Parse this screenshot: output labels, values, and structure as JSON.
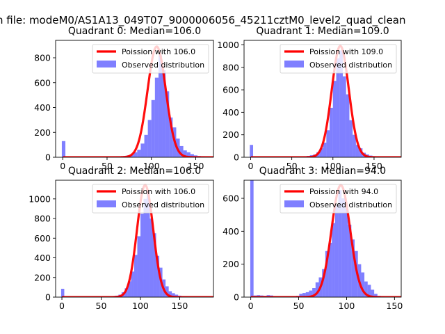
{
  "figure": {
    "suptitle": "n file: modeM0/AS1A13_049T07_9000006056_45211cztM0_level2_quad_clean"
  },
  "chart_data": [
    {
      "type": "bar",
      "title": "Quadrant 0: Median=106.0",
      "xlim": [
        -8,
        170
      ],
      "ylim": [
        0,
        940
      ],
      "xticks": [
        0,
        50,
        100,
        150
      ],
      "yticks": [
        0,
        200,
        400,
        600,
        800
      ],
      "mean": 106.0,
      "fit_peak": 890,
      "fit_sigma": 10.3,
      "bin_width": 4,
      "legend": [
        "Poission with 106.0",
        "Observed distribution"
      ],
      "legend_loc": "upper right",
      "bars": [
        [
          -1,
          130
        ],
        [
          0,
          5
        ],
        [
          4,
          5
        ],
        [
          8,
          5
        ],
        [
          12,
          5
        ],
        [
          16,
          5
        ],
        [
          20,
          5
        ],
        [
          24,
          5
        ],
        [
          28,
          5
        ],
        [
          32,
          5
        ],
        [
          36,
          5
        ],
        [
          40,
          5
        ],
        [
          44,
          5
        ],
        [
          48,
          5
        ],
        [
          52,
          5
        ],
        [
          56,
          5
        ],
        [
          60,
          6
        ],
        [
          64,
          8
        ],
        [
          68,
          10
        ],
        [
          72,
          15
        ],
        [
          76,
          20
        ],
        [
          80,
          40
        ],
        [
          84,
          60
        ],
        [
          88,
          110
        ],
        [
          92,
          180
        ],
        [
          96,
          300
        ],
        [
          100,
          460
        ],
        [
          104,
          640
        ],
        [
          108,
          820
        ],
        [
          112,
          700
        ],
        [
          116,
          530
        ],
        [
          120,
          320
        ],
        [
          124,
          240
        ],
        [
          128,
          150
        ],
        [
          132,
          90
        ],
        [
          136,
          55
        ],
        [
          140,
          40
        ],
        [
          144,
          25
        ],
        [
          148,
          15
        ],
        [
          152,
          10
        ],
        [
          156,
          8
        ],
        [
          160,
          5
        ]
      ]
    },
    {
      "type": "bar",
      "title": "Quadrant 1: Median=109.0",
      "xlim": [
        -8,
        183
      ],
      "ylim": [
        0,
        1040
      ],
      "xticks": [
        0,
        50,
        100,
        150
      ],
      "yticks": [
        0,
        200,
        400,
        600,
        800,
        1000
      ],
      "mean": 109.0,
      "fit_peak": 990,
      "fit_sigma": 10.4,
      "bin_width": 4,
      "legend": [
        "Poission with 109.0",
        "Observed distribution"
      ],
      "legend_loc": "upper right",
      "bars": [
        [
          -1,
          110
        ],
        [
          4,
          5
        ],
        [
          8,
          5
        ],
        [
          12,
          5
        ],
        [
          16,
          5
        ],
        [
          20,
          5
        ],
        [
          24,
          5
        ],
        [
          28,
          5
        ],
        [
          32,
          5
        ],
        [
          36,
          5
        ],
        [
          40,
          5
        ],
        [
          44,
          5
        ],
        [
          48,
          5
        ],
        [
          52,
          5
        ],
        [
          56,
          5
        ],
        [
          60,
          5
        ],
        [
          64,
          8
        ],
        [
          68,
          12
        ],
        [
          72,
          18
        ],
        [
          76,
          25
        ],
        [
          80,
          45
        ],
        [
          84,
          80
        ],
        [
          88,
          130
        ],
        [
          92,
          240
        ],
        [
          96,
          440
        ],
        [
          100,
          680
        ],
        [
          104,
          880
        ],
        [
          108,
          950
        ],
        [
          112,
          720
        ],
        [
          116,
          560
        ],
        [
          120,
          330
        ],
        [
          124,
          200
        ],
        [
          128,
          110
        ],
        [
          132,
          80
        ],
        [
          136,
          40
        ],
        [
          140,
          25
        ],
        [
          144,
          15
        ],
        [
          148,
          10
        ],
        [
          152,
          8
        ],
        [
          156,
          6
        ],
        [
          160,
          5
        ],
        [
          164,
          5
        ],
        [
          168,
          5
        ],
        [
          172,
          5
        ]
      ]
    },
    {
      "type": "bar",
      "title": "Quadrant 2: Median=106.0",
      "xlim": [
        -8,
        193
      ],
      "ylim": [
        0,
        1190
      ],
      "xticks": [
        0,
        50,
        100,
        150
      ],
      "yticks": [
        0,
        200,
        400,
        600,
        800,
        1000
      ],
      "mean": 106.0,
      "fit_peak": 1140,
      "fit_sigma": 10.3,
      "bin_width": 4,
      "legend": [
        "Poission with 106.0",
        "Observed distribution"
      ],
      "legend_loc": "upper right",
      "bars": [
        [
          -1,
          85
        ],
        [
          4,
          5
        ],
        [
          8,
          5
        ],
        [
          12,
          5
        ],
        [
          16,
          5
        ],
        [
          20,
          5
        ],
        [
          24,
          5
        ],
        [
          28,
          5
        ],
        [
          32,
          5
        ],
        [
          36,
          5
        ],
        [
          40,
          5
        ],
        [
          44,
          5
        ],
        [
          48,
          5
        ],
        [
          52,
          5
        ],
        [
          56,
          5
        ],
        [
          60,
          6
        ],
        [
          64,
          10
        ],
        [
          68,
          15
        ],
        [
          72,
          25
        ],
        [
          76,
          50
        ],
        [
          80,
          90
        ],
        [
          84,
          160
        ],
        [
          88,
          260
        ],
        [
          92,
          430
        ],
        [
          96,
          620
        ],
        [
          100,
          850
        ],
        [
          104,
          1000
        ],
        [
          108,
          1080
        ],
        [
          112,
          800
        ],
        [
          116,
          650
        ],
        [
          120,
          420
        ],
        [
          124,
          300
        ],
        [
          128,
          180
        ],
        [
          132,
          110
        ],
        [
          136,
          60
        ],
        [
          140,
          40
        ],
        [
          144,
          25
        ],
        [
          148,
          15
        ],
        [
          152,
          10
        ],
        [
          156,
          8
        ],
        [
          160,
          5
        ],
        [
          164,
          5
        ],
        [
          168,
          5
        ],
        [
          172,
          5
        ],
        [
          176,
          5
        ],
        [
          180,
          5
        ]
      ]
    },
    {
      "type": "bar",
      "title": "Quadrant 3: Median=94.0",
      "xlim": [
        -7,
        157
      ],
      "ylim": [
        0,
        710
      ],
      "xticks": [
        0,
        50,
        100,
        150
      ],
      "yticks": [
        0,
        200,
        400,
        600
      ],
      "mean": 94.0,
      "fit_peak": 680,
      "fit_sigma": 9.7,
      "bin_width": 3.4,
      "legend": [
        "Poission with 94.0",
        "Observed distribution"
      ],
      "legend_loc": "upper right",
      "bars": [
        [
          -0.5,
          710
        ],
        [
          3,
          10
        ],
        [
          6.4,
          12
        ],
        [
          9.8,
          10
        ],
        [
          13.2,
          8
        ],
        [
          16.6,
          12
        ],
        [
          20,
          10
        ],
        [
          23.4,
          6
        ],
        [
          26.8,
          5
        ],
        [
          30.2,
          5
        ],
        [
          33.6,
          5
        ],
        [
          37,
          5
        ],
        [
          40.4,
          5
        ],
        [
          43.8,
          6
        ],
        [
          47.2,
          8
        ],
        [
          50.6,
          20
        ],
        [
          54,
          25
        ],
        [
          57.4,
          30
        ],
        [
          60.8,
          40
        ],
        [
          64.2,
          55
        ],
        [
          67.6,
          90
        ],
        [
          71,
          120
        ],
        [
          74.4,
          170
        ],
        [
          77.8,
          280
        ],
        [
          81.2,
          330
        ],
        [
          84.6,
          450
        ],
        [
          88,
          560
        ],
        [
          91.4,
          650
        ],
        [
          94.8,
          600
        ],
        [
          98.2,
          540
        ],
        [
          101.6,
          440
        ],
        [
          105,
          350
        ],
        [
          108.4,
          280
        ],
        [
          111.8,
          200
        ],
        [
          115.2,
          150
        ],
        [
          118.6,
          95
        ],
        [
          122,
          75
        ],
        [
          125.4,
          45
        ],
        [
          128.8,
          20
        ],
        [
          132.2,
          8
        ],
        [
          135.6,
          5
        ]
      ]
    }
  ]
}
